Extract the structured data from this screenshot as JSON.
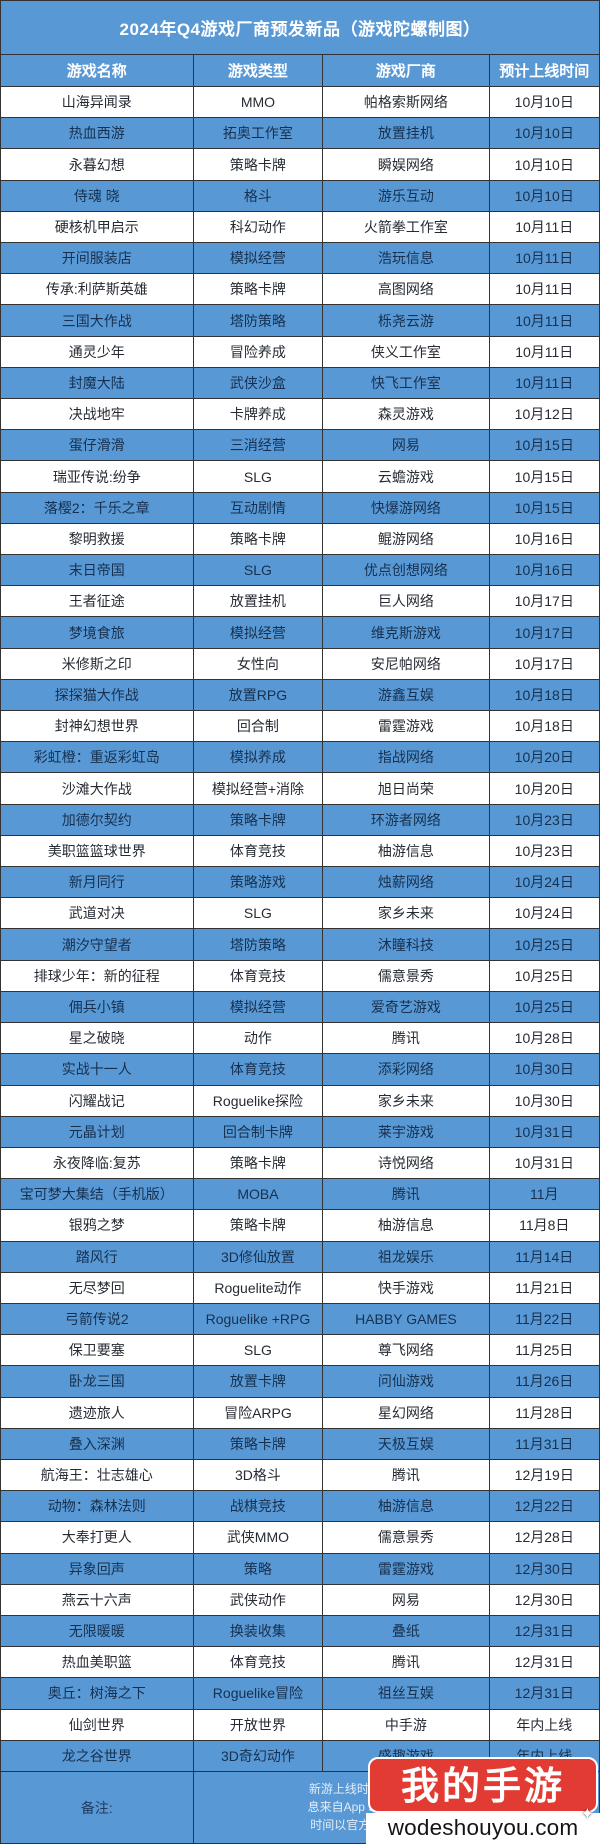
{
  "chart_data": {
    "type": "table",
    "title": "2024年Q4游戏厂商预发新品（游戏陀螺制图）",
    "columns": [
      "游戏名称",
      "游戏类型",
      "游戏厂商",
      "预计上线时间"
    ],
    "rows": [
      [
        "山海异闻录",
        "MMO",
        "帕格索斯网络",
        "10月10日"
      ],
      [
        "热血西游",
        "拓奥工作室",
        "放置挂机",
        "10月10日"
      ],
      [
        "永暮幻想",
        "策略卡牌",
        "瞬娱网络",
        "10月10日"
      ],
      [
        "侍魂 晓",
        "格斗",
        "游乐互动",
        "10月10日"
      ],
      [
        "硬核机甲启示",
        "科幻动作",
        "火箭拳工作室",
        "10月11日"
      ],
      [
        "开间服装店",
        "模拟经营",
        "浩玩信息",
        "10月11日"
      ],
      [
        "传承:利萨斯英雄",
        "策略卡牌",
        "高图网络",
        "10月11日"
      ],
      [
        "三国大作战",
        "塔防策略",
        "栎尧云游",
        "10月11日"
      ],
      [
        "通灵少年",
        "冒险养成",
        "侠义工作室",
        "10月11日"
      ],
      [
        "封魔大陆",
        "武侠沙盒",
        "快飞工作室",
        "10月11日"
      ],
      [
        "决战地牢",
        "卡牌养成",
        "森灵游戏",
        "10月12日"
      ],
      [
        "蛋仔滑滑",
        "三消经营",
        "网易",
        "10月15日"
      ],
      [
        "瑞亚传说:纷争",
        "SLG",
        "云蟾游戏",
        "10月15日"
      ],
      [
        "落樱2：千乐之章",
        "互动剧情",
        "快爆游网络",
        "10月15日"
      ],
      [
        "黎明救援",
        "策略卡牌",
        "鲲游网络",
        "10月16日"
      ],
      [
        "末日帝国",
        "SLG",
        "优点创想网络",
        "10月16日"
      ],
      [
        "王者征途",
        "放置挂机",
        "巨人网络",
        "10月17日"
      ],
      [
        "梦境食旅",
        "模拟经营",
        "维克斯游戏",
        "10月17日"
      ],
      [
        "米修斯之印",
        "女性向",
        "安尼帕网络",
        "10月17日"
      ],
      [
        "探探猫大作战",
        "放置RPG",
        "游鑫互娱",
        "10月18日"
      ],
      [
        "封神幻想世界",
        "回合制",
        "雷霆游戏",
        "10月18日"
      ],
      [
        "彩虹橙：重返彩虹岛",
        "模拟养成",
        "指战网络",
        "10月20日"
      ],
      [
        "沙滩大作战",
        "模拟经营+消除",
        "旭日尚荣",
        "10月20日"
      ],
      [
        "加德尔契约",
        "策略卡牌",
        "环游者网络",
        "10月23日"
      ],
      [
        "美职篮篮球世界",
        "体育竞技",
        "柚游信息",
        "10月23日"
      ],
      [
        "新月同行",
        "策略游戏",
        "烛薪网络",
        "10月24日"
      ],
      [
        "武道对决",
        "SLG",
        "家乡未来",
        "10月24日"
      ],
      [
        "潮汐守望者",
        "塔防策略",
        "沐瞳科技",
        "10月25日"
      ],
      [
        "排球少年：新的征程",
        "体育竞技",
        "儒意景秀",
        "10月25日"
      ],
      [
        "佣兵小镇",
        "模拟经营",
        "爱奇艺游戏",
        "10月25日"
      ],
      [
        "星之破晓",
        "动作",
        "腾讯",
        "10月28日"
      ],
      [
        "实战十一人",
        "体育竞技",
        "添彩网络",
        "10月30日"
      ],
      [
        "闪耀战记",
        "Roguelike探险",
        "家乡未来",
        "10月30日"
      ],
      [
        "元晶计划",
        "回合制卡牌",
        "莱宇游戏",
        "10月31日"
      ],
      [
        "永夜降临:复苏",
        "策略卡牌",
        "诗悦网络",
        "10月31日"
      ],
      [
        "宝可梦大集结（手机版）",
        "MOBA",
        "腾讯",
        "11月"
      ],
      [
        "银鸦之梦",
        "策略卡牌",
        "柚游信息",
        "11月8日"
      ],
      [
        "踏风行",
        "3D修仙放置",
        "祖龙娱乐",
        "11月14日"
      ],
      [
        "无尽梦回",
        "Roguelite动作",
        "快手游戏",
        "11月21日"
      ],
      [
        "弓箭传说2",
        "Roguelike +RPG",
        "HABBY GAMES",
        "11月22日"
      ],
      [
        "保卫要塞",
        "SLG",
        "尊飞网络",
        "11月25日"
      ],
      [
        "卧龙三国",
        "放置卡牌",
        "问仙游戏",
        "11月26日"
      ],
      [
        "遗迹旅人",
        "冒险ARPG",
        "星幻网络",
        "11月28日"
      ],
      [
        "叠入深渊",
        "策略卡牌",
        "天极互娱",
        "11月31日"
      ],
      [
        "航海王：壮志雄心",
        "3D格斗",
        "腾讯",
        "12月19日"
      ],
      [
        "动物：森林法则",
        "战棋竞技",
        "柚游信息",
        "12月22日"
      ],
      [
        "大奉打更人",
        "武侠MMO",
        "儒意景秀",
        "12月28日"
      ],
      [
        "异象回声",
        "策略",
        "雷霆游戏",
        "12月30日"
      ],
      [
        "燕云十六声",
        "武侠动作",
        "网易",
        "12月30日"
      ],
      [
        "无限暖暖",
        "换装收集",
        "叠纸",
        "12月31日"
      ],
      [
        "热血美职篮",
        "体育竞技",
        "腾讯",
        "12月31日"
      ],
      [
        "奥丘：树海之下",
        "Roguelike冒险",
        "祖丝互娱",
        "12月31日"
      ],
      [
        "仙剑世界",
        "开放世界",
        "中手游",
        "年内上线"
      ],
      [
        "龙之谷世界",
        "3D奇幻动作",
        "盛趣游戏",
        "年内上线"
      ]
    ],
    "layout": {
      "grid": "on",
      "striped": true,
      "stripe_pattern": "odd-white-even-blue"
    }
  },
  "footer": {
    "label": "备注:",
    "note_lines": [
      "新游上线时间来源于官方、TapTap",
      "息来自App Store页面的预定，官方",
      "时间以官方公布为准。表格手工统"
    ]
  },
  "watermark": {
    "brand": "我的手游",
    "domain": "wodeshouyou.com",
    "sparkle_icon": "✦"
  },
  "colors": {
    "accent_blue": "#5899D5",
    "border_dark": "#333333",
    "logo_red": "#E23B33",
    "header_text": "#FFFFFF",
    "note_text": "#E2ECF6"
  }
}
